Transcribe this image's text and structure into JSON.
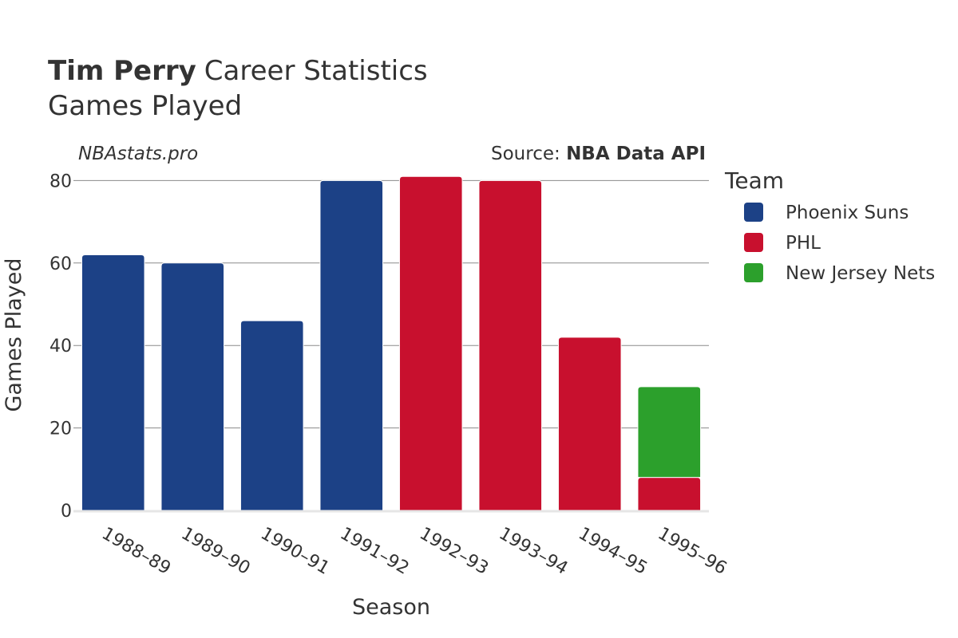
{
  "title": {
    "bold": "Tim Perry",
    "rest": "Career Statistics",
    "subtitle": "Games Played"
  },
  "watermark": "NBAstats.pro",
  "source": {
    "prefix": "Source: ",
    "name": "NBA Data API"
  },
  "legend": {
    "title": "Team"
  },
  "chart_data": {
    "type": "bar",
    "stacked": true,
    "title": "Tim Perry Career Statistics — Games Played",
    "xlabel": "Season",
    "ylabel": "Games Played",
    "ylim": [
      0,
      85
    ],
    "yticks": [
      0,
      20,
      40,
      60,
      80
    ],
    "grid": true,
    "legend_position": "right",
    "categories": [
      "1988–89",
      "1989–90",
      "1990–91",
      "1991–92",
      "1992–93",
      "1993–94",
      "1994–95",
      "1995–96"
    ],
    "series": [
      {
        "name": "Phoenix Suns",
        "color": "#1c4186",
        "values": [
          62,
          60,
          46,
          80,
          0,
          0,
          0,
          0
        ]
      },
      {
        "name": "PHL",
        "color": "#c8102e",
        "values": [
          0,
          0,
          0,
          0,
          81,
          80,
          42,
          8
        ]
      },
      {
        "name": "New Jersey Nets",
        "color": "#2ca02c",
        "values": [
          0,
          0,
          0,
          0,
          0,
          0,
          0,
          22
        ]
      }
    ]
  }
}
